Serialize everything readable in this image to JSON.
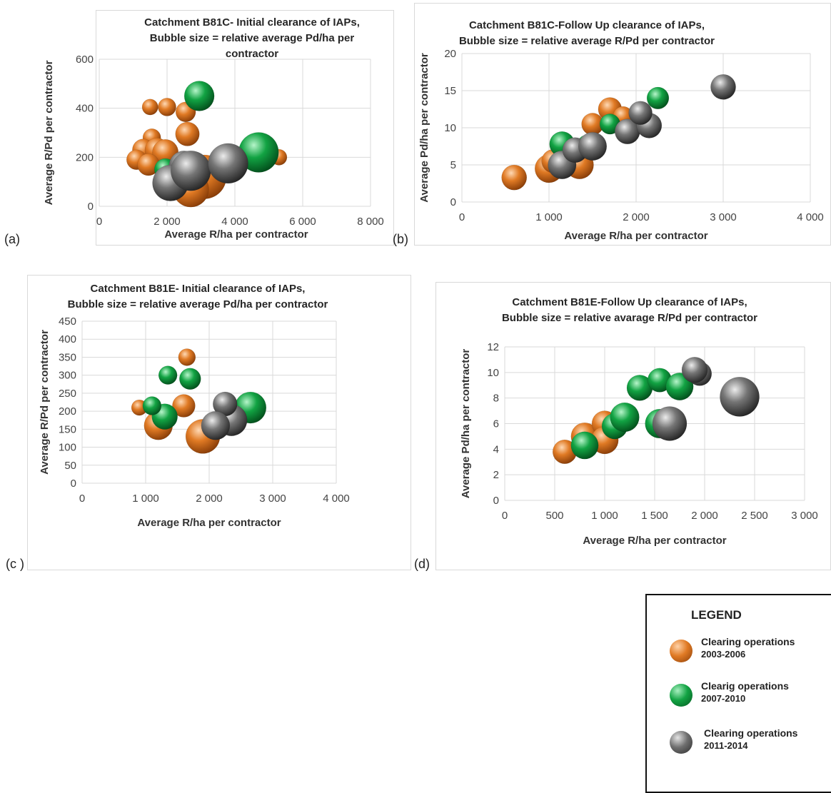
{
  "figure_labels": [
    "(a)",
    "(b)",
    "(c )",
    "(d)"
  ],
  "colors": {
    "orange": "#e07a24",
    "green": "#12a343",
    "gray": "#6f6f6f",
    "grid": "#d9d9d9",
    "axis_text": "#444444"
  },
  "legend": {
    "title": "LEGEND",
    "items": [
      {
        "line1": "Clearing operations",
        "line2": "2003-2006",
        "color_key": "orange",
        "icon": "orange-sphere-icon"
      },
      {
        "line1": "Clearig operations",
        "line2": "2007-2010",
        "color_key": "green",
        "icon": "green-sphere-icon"
      },
      {
        "line1": "Clearing operations",
        "line2": "2011-2014",
        "color_key": "gray",
        "icon": "gray-sphere-icon"
      }
    ]
  },
  "chart_data": [
    {
      "type": "scatter",
      "variant": "bubble",
      "title_lines": [
        "Catchment B81C- Initial clearance of IAPs,",
        "Bubble size = relative average Pd/ha per",
        "contractor"
      ],
      "xlabel": "Average R/ha per contractor",
      "ylabel": "Average R/Pd per contractor",
      "xlim": [
        0,
        8000
      ],
      "ylim": [
        0,
        600
      ],
      "xticks": [
        0,
        2000,
        4000,
        6000,
        8000
      ],
      "xtick_labels": [
        "0",
        "2 000",
        "4 000",
        "6 000",
        "8 000"
      ],
      "yticks": [
        0,
        200,
        400,
        600
      ],
      "ytick_labels": [
        "0",
        "200",
        "400",
        "600"
      ],
      "grid": true,
      "series": [
        {
          "color_key": "orange",
          "points": [
            {
              "x": 1500,
              "y": 405,
              "size": 0.4
            },
            {
              "x": 2000,
              "y": 405,
              "size": 0.45
            },
            {
              "x": 2550,
              "y": 385,
              "size": 0.5
            },
            {
              "x": 1550,
              "y": 280,
              "size": 0.45
            },
            {
              "x": 2600,
              "y": 295,
              "size": 0.6
            },
            {
              "x": 1300,
              "y": 230,
              "size": 0.55
            },
            {
              "x": 1700,
              "y": 230,
              "size": 0.6
            },
            {
              "x": 1950,
              "y": 220,
              "size": 0.65
            },
            {
              "x": 1100,
              "y": 190,
              "size": 0.5
            },
            {
              "x": 1450,
              "y": 170,
              "size": 0.55
            },
            {
              "x": 3100,
              "y": 120,
              "size": 1.1
            },
            {
              "x": 2700,
              "y": 70,
              "size": 0.9
            },
            {
              "x": 5300,
              "y": 200,
              "size": 0.4
            }
          ]
        },
        {
          "color_key": "green",
          "points": [
            {
              "x": 2950,
              "y": 450,
              "size": 0.75
            },
            {
              "x": 4700,
              "y": 220,
              "size": 1.0
            },
            {
              "x": 1950,
              "y": 150,
              "size": 0.55
            }
          ]
        },
        {
          "color_key": "gray",
          "points": [
            {
              "x": 2500,
              "y": 165,
              "size": 0.75
            },
            {
              "x": 2100,
              "y": 95,
              "size": 0.9
            },
            {
              "x": 2700,
              "y": 145,
              "size": 1.0
            },
            {
              "x": 3800,
              "y": 175,
              "size": 1.0
            }
          ]
        }
      ]
    },
    {
      "type": "scatter",
      "variant": "bubble",
      "title_lines": [
        "Catchment B81C-Follow Up clearance of IAPs,",
        "Bubble size = relative average R/Pd per contractor"
      ],
      "xlabel": "Average R/ha per contractor",
      "ylabel": "Average Pd/ha per contractor",
      "xlim": [
        0,
        4000
      ],
      "ylim": [
        0,
        20
      ],
      "xticks": [
        0,
        1000,
        2000,
        3000,
        4000
      ],
      "xtick_labels": [
        "0",
        "1 000",
        "2 000",
        "3 000",
        "4 000"
      ],
      "yticks": [
        0,
        5,
        10,
        15,
        20
      ],
      "ytick_labels": [
        "0",
        "5",
        "10",
        "15",
        "20"
      ],
      "grid": true,
      "series": [
        {
          "color_key": "orange",
          "points": [
            {
              "x": 600,
              "y": 3.3,
              "size": 0.8
            },
            {
              "x": 1000,
              "y": 4.5,
              "size": 0.9
            },
            {
              "x": 1350,
              "y": 5.0,
              "size": 0.9
            },
            {
              "x": 1050,
              "y": 5.5,
              "size": 0.75
            },
            {
              "x": 1500,
              "y": 10.5,
              "size": 0.7
            },
            {
              "x": 1700,
              "y": 12.5,
              "size": 0.75
            },
            {
              "x": 1850,
              "y": 11.5,
              "size": 0.65
            }
          ]
        },
        {
          "color_key": "green",
          "points": [
            {
              "x": 1150,
              "y": 7.8,
              "size": 0.8
            },
            {
              "x": 1700,
              "y": 10.5,
              "size": 0.65
            },
            {
              "x": 2250,
              "y": 14.0,
              "size": 0.7
            },
            {
              "x": 1450,
              "y": 7.5,
              "size": 0.75
            }
          ]
        },
        {
          "color_key": "gray",
          "points": [
            {
              "x": 1150,
              "y": 5.0,
              "size": 0.9
            },
            {
              "x": 1300,
              "y": 7.0,
              "size": 0.8
            },
            {
              "x": 1500,
              "y": 7.5,
              "size": 0.9
            },
            {
              "x": 1900,
              "y": 9.5,
              "size": 0.8
            },
            {
              "x": 2150,
              "y": 10.3,
              "size": 0.8
            },
            {
              "x": 2050,
              "y": 12.0,
              "size": 0.75
            },
            {
              "x": 3000,
              "y": 15.5,
              "size": 0.8
            }
          ]
        }
      ]
    },
    {
      "type": "scatter",
      "variant": "bubble",
      "title_lines": [
        "Catchment B81E- Initial clearance of IAPs,",
        "Bubble size = relative average Pd/ha per contractor"
      ],
      "xlabel": "Average R/ha per contractor",
      "ylabel": "Average R/Pd per contractor",
      "xlim": [
        0,
        4000
      ],
      "ylim": [
        0,
        450
      ],
      "xticks": [
        0,
        1000,
        2000,
        3000,
        4000
      ],
      "xtick_labels": [
        "0",
        "1 000",
        "2 000",
        "3 000",
        "4 000"
      ],
      "yticks": [
        0,
        50,
        100,
        150,
        200,
        250,
        300,
        350,
        400,
        450
      ],
      "ytick_labels": [
        "0",
        "50",
        "100",
        "150",
        "200",
        "250",
        "300",
        "350",
        "400",
        "450"
      ],
      "grid": true,
      "series": [
        {
          "color_key": "orange",
          "points": [
            {
              "x": 1650,
              "y": 350,
              "size": 0.6
            },
            {
              "x": 900,
              "y": 210,
              "size": 0.55
            },
            {
              "x": 1200,
              "y": 160,
              "size": 1.0
            },
            {
              "x": 1900,
              "y": 130,
              "size": 1.2
            },
            {
              "x": 1600,
              "y": 215,
              "size": 0.8
            }
          ]
        },
        {
          "color_key": "green",
          "points": [
            {
              "x": 1350,
              "y": 300,
              "size": 0.65
            },
            {
              "x": 1700,
              "y": 290,
              "size": 0.75
            },
            {
              "x": 1300,
              "y": 185,
              "size": 0.9
            },
            {
              "x": 1100,
              "y": 215,
              "size": 0.65
            },
            {
              "x": 2650,
              "y": 210,
              "size": 1.1
            }
          ]
        },
        {
          "color_key": "gray",
          "points": [
            {
              "x": 2350,
              "y": 175,
              "size": 1.1
            },
            {
              "x": 2250,
              "y": 220,
              "size": 0.85
            },
            {
              "x": 2100,
              "y": 160,
              "size": 1.0
            }
          ]
        }
      ]
    },
    {
      "type": "scatter",
      "variant": "bubble",
      "title_lines": [
        "Catchment B81E-Follow Up clearance of IAPs,",
        "Bubble size = relative avarage R/Pd per contractor"
      ],
      "xlabel": "Average R/ha per contractor",
      "ylabel": "Average Pd/ha per contractor",
      "xlim": [
        0,
        3000
      ],
      "ylim": [
        0,
        12
      ],
      "xticks": [
        0,
        500,
        1000,
        1500,
        2000,
        2500,
        3000
      ],
      "xtick_labels": [
        "0",
        "500",
        "1 000",
        "1 500",
        "2 000",
        "2 500",
        "3 000"
      ],
      "yticks": [
        0,
        2,
        4,
        6,
        8,
        10,
        12
      ],
      "ytick_labels": [
        "0",
        "2",
        "4",
        "6",
        "8",
        "10",
        "12"
      ],
      "grid": true,
      "series": [
        {
          "color_key": "orange",
          "points": [
            {
              "x": 600,
              "y": 3.8,
              "size": 0.7
            },
            {
              "x": 800,
              "y": 5.0,
              "size": 0.8
            },
            {
              "x": 1000,
              "y": 6.0,
              "size": 0.75
            },
            {
              "x": 1000,
              "y": 4.7,
              "size": 0.8
            }
          ]
        },
        {
          "color_key": "green",
          "points": [
            {
              "x": 800,
              "y": 4.3,
              "size": 0.8
            },
            {
              "x": 1100,
              "y": 5.8,
              "size": 0.75
            },
            {
              "x": 1200,
              "y": 6.5,
              "size": 0.85
            },
            {
              "x": 1350,
              "y": 8.8,
              "size": 0.75
            },
            {
              "x": 1550,
              "y": 9.4,
              "size": 0.7
            },
            {
              "x": 1750,
              "y": 8.9,
              "size": 0.8
            },
            {
              "x": 1550,
              "y": 6.0,
              "size": 0.85
            }
          ]
        },
        {
          "color_key": "gray",
          "points": [
            {
              "x": 1650,
              "y": 6.0,
              "size": 1.0
            },
            {
              "x": 1950,
              "y": 9.9,
              "size": 0.7
            },
            {
              "x": 1900,
              "y": 10.2,
              "size": 0.75
            },
            {
              "x": 2350,
              "y": 8.1,
              "size": 1.15
            }
          ]
        }
      ]
    }
  ]
}
